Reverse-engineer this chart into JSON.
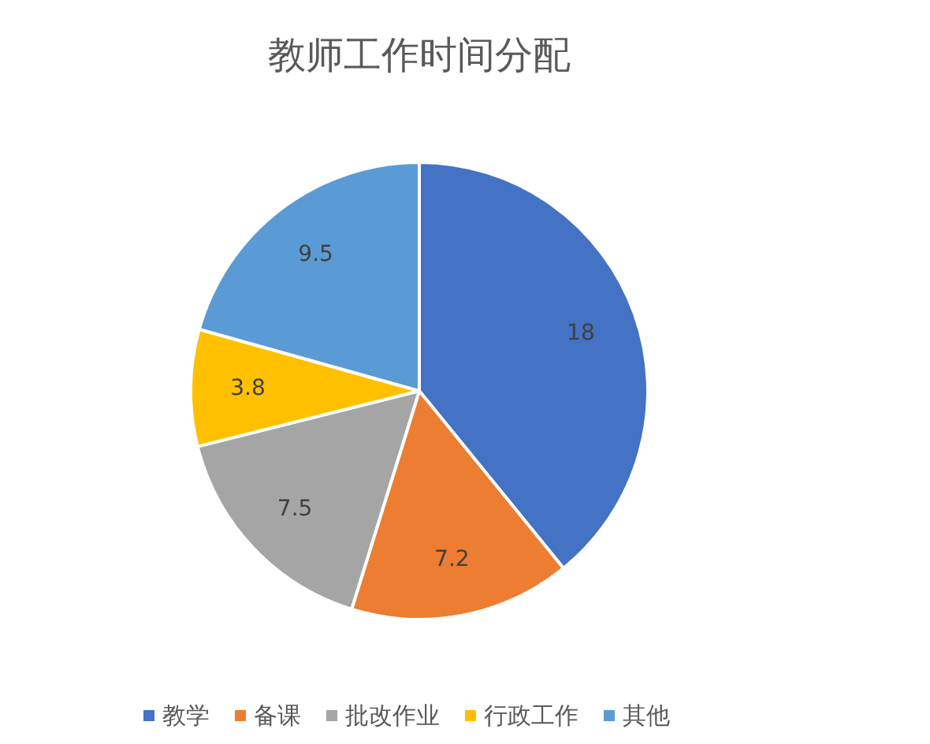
{
  "chart_data": {
    "type": "pie",
    "title": "教师工作时间分配",
    "categories": [
      "教学",
      "备课",
      "批改作业",
      "行政工作",
      "其他"
    ],
    "values": [
      18,
      7.2,
      7.5,
      3.8,
      9.5
    ],
    "colors": [
      "#4472c4",
      "#ed7d31",
      "#a5a5a5",
      "#ffc000",
      "#5b9bd5"
    ],
    "data_labels": true,
    "legend": "bottom"
  }
}
